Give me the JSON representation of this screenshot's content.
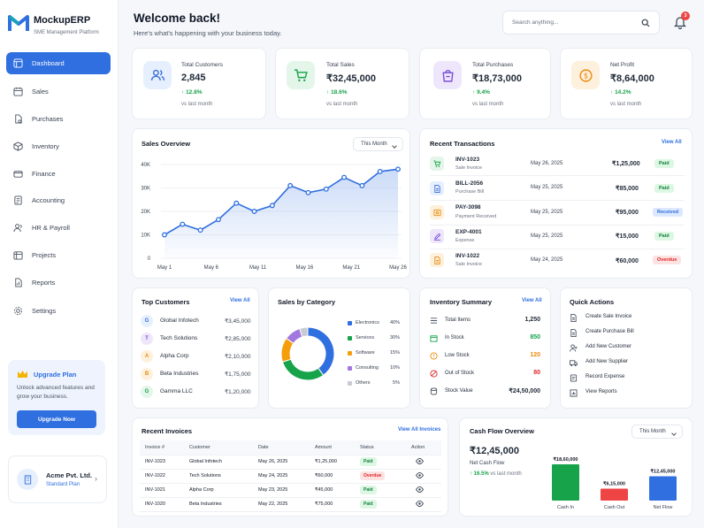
{
  "brand": {
    "name": "MockupERP",
    "subtitle": "SME Management Platform"
  },
  "nav": [
    {
      "label": "Dashboard",
      "icon": "dashboard-icon"
    },
    {
      "label": "Sales",
      "icon": "sales-icon"
    },
    {
      "label": "Purchases",
      "icon": "purchases-icon"
    },
    {
      "label": "Inventory",
      "icon": "inventory-icon"
    },
    {
      "label": "Finance",
      "icon": "finance-icon"
    },
    {
      "label": "Accounting",
      "icon": "accounting-icon"
    },
    {
      "label": "HR & Payroll",
      "icon": "hr-icon"
    },
    {
      "label": "Projects",
      "icon": "projects-icon"
    },
    {
      "label": "Reports",
      "icon": "reports-icon"
    },
    {
      "label": "Settings",
      "icon": "settings-icon"
    }
  ],
  "upgrade": {
    "title": "Upgrade Plan",
    "text": "Unlock advanced features and grow your business.",
    "button": "Upgrade Now"
  },
  "company": {
    "name": "Acme Pvt. Ltd.",
    "plan": "Standard Plan"
  },
  "header": {
    "title": "Welcome back!",
    "subtitle": "Here's what's happening with your business today.",
    "search_placeholder": "Search anything...",
    "notifications": "3"
  },
  "stats": [
    {
      "label": "Total Customers",
      "value": "2,845",
      "change": "12.8%",
      "note": "vs last month",
      "color": "#3b6fd8",
      "bg": "#e6effd"
    },
    {
      "label": "Total Sales",
      "value": "₹32,45,000",
      "change": "18.6%",
      "note": "vs last month",
      "color": "#16a34a",
      "bg": "#e3f6e9"
    },
    {
      "label": "Total Purchases",
      "value": "₹18,73,000",
      "change": "9.4%",
      "note": "vs last month",
      "color": "#7c4dd6",
      "bg": "#eee7fb"
    },
    {
      "label": "Net Profit",
      "value": "₹8,64,000",
      "change": "14.2%",
      "note": "vs last month",
      "color": "#ea8a0c",
      "bg": "#fdf0dc"
    }
  ],
  "sales_overview": {
    "title": "Sales Overview",
    "period": "This Month"
  },
  "chart_data": {
    "type": "area",
    "x": [
      "May 1",
      "May 3",
      "May 5",
      "May 7",
      "May 9",
      "May 11",
      "May 13",
      "May 15",
      "May 17",
      "May 19",
      "May 21",
      "May 23",
      "May 25",
      "May 27"
    ],
    "x_ticks": [
      "May 1",
      "May 6",
      "May 11",
      "May 16",
      "May 21",
      "May 26"
    ],
    "y_ticks": [
      "0",
      "10K",
      "20K",
      "30K",
      "40K"
    ],
    "values": [
      10000,
      14500,
      12000,
      16500,
      23500,
      20000,
      22500,
      31000,
      28000,
      29500,
      34500,
      31000,
      37000,
      38000
    ],
    "ylim": [
      0,
      40000
    ],
    "color": "#2f6fe0"
  },
  "transactions": {
    "title": "Recent Transactions",
    "link": "View All",
    "rows": [
      {
        "id": "INV-1023",
        "type": "Sale Invoice",
        "date": "May 26, 2025",
        "amount": "₹1,25,000",
        "status": "Paid",
        "kind": "green"
      },
      {
        "id": "BILL-2056",
        "type": "Purchase Bill",
        "date": "May 25, 2025",
        "amount": "₹85,000",
        "status": "Paid",
        "kind": "green"
      },
      {
        "id": "PAY-3098",
        "type": "Payment Received",
        "date": "May 25, 2025",
        "amount": "₹95,000",
        "status": "Received",
        "kind": "blue"
      },
      {
        "id": "EXP-4001",
        "type": "Expense",
        "date": "May 25, 2025",
        "amount": "₹15,000",
        "status": "Paid",
        "kind": "green"
      },
      {
        "id": "INV-1022",
        "type": "Sale Invoice",
        "date": "May 24, 2025",
        "amount": "₹60,000",
        "status": "Overdue",
        "kind": "red"
      }
    ]
  },
  "top_customers": {
    "title": "Top Customers",
    "link": "View All",
    "rows": [
      {
        "letter": "G",
        "name": "Global Infotech",
        "amount": "₹3,45,000",
        "color": "#3b6fd8",
        "bg": "#e6effd"
      },
      {
        "letter": "T",
        "name": "Tech Solutions",
        "amount": "₹2,85,000",
        "color": "#7c4dd6",
        "bg": "#eee7fb"
      },
      {
        "letter": "A",
        "name": "Alpha Corp",
        "amount": "₹2,10,000",
        "color": "#ea8a0c",
        "bg": "#fdf0dc"
      },
      {
        "letter": "B",
        "name": "Beta Industries",
        "amount": "₹1,75,000",
        "color": "#ea8a0c",
        "bg": "#fdf0dc"
      },
      {
        "letter": "G",
        "name": "Gamma LLC",
        "amount": "₹1,20,000",
        "color": "#16a34a",
        "bg": "#e3f6e9"
      }
    ]
  },
  "sales_by_category": {
    "title": "Sales by Category",
    "items": [
      {
        "name": "Electronics",
        "pct": "40%",
        "value": 40,
        "color": "#2f6fe0"
      },
      {
        "name": "Services",
        "pct": "30%",
        "value": 30,
        "color": "#16a34a"
      },
      {
        "name": "Software",
        "pct": "15%",
        "value": 15,
        "color": "#f59e0b"
      },
      {
        "name": "Consulting",
        "pct": "10%",
        "value": 10,
        "color": "#a277e0"
      },
      {
        "name": "Others",
        "pct": "5%",
        "value": 5,
        "color": "#c7cbd3"
      }
    ]
  },
  "inventory": {
    "title": "Inventory Summary",
    "link": "View All",
    "rows": [
      {
        "label": "Total Items",
        "value": "1,250",
        "cls": ""
      },
      {
        "label": "In Stock",
        "value": "850",
        "cls": "green"
      },
      {
        "label": "Low Stock",
        "value": "120",
        "cls": "orange"
      },
      {
        "label": "Out of Stock",
        "value": "80",
        "cls": "red"
      },
      {
        "label": "Stock Value",
        "value": "₹24,50,000",
        "cls": ""
      }
    ]
  },
  "quick_actions": {
    "title": "Quick Actions",
    "items": [
      "Create Sale Invoice",
      "Create Purchase Bill",
      "Add New Customer",
      "Add New Supplier",
      "Record Expense",
      "View Reports"
    ]
  },
  "invoices": {
    "title": "Recent Invoices",
    "link": "View All Invoices",
    "headers": [
      "Invoice #",
      "Customer",
      "Date",
      "Amount",
      "Status",
      "Action"
    ],
    "rows": [
      {
        "id": "INV-1023",
        "customer": "Global Infotech",
        "date": "May 26, 2025",
        "amount": "₹1,25,000",
        "status": "Paid",
        "kind": "green"
      },
      {
        "id": "INV-1022",
        "customer": "Tech Solutions",
        "date": "May 24, 2025",
        "amount": "₹60,000",
        "status": "Overdue",
        "kind": "red"
      },
      {
        "id": "INV-1021",
        "customer": "Alpha Corp",
        "date": "May 23, 2025",
        "amount": "₹45,000",
        "status": "Paid",
        "kind": "green"
      },
      {
        "id": "INV-1020",
        "customer": "Beta Industries",
        "date": "May 22, 2025",
        "amount": "₹75,000",
        "status": "Paid",
        "kind": "green"
      }
    ]
  },
  "cash_flow": {
    "title": "Cash Flow Overview",
    "period": "This Month",
    "value": "₹12,45,000",
    "label": "Net Cash Flow",
    "change": "16.5%",
    "note": "vs last month",
    "bars": [
      {
        "name": "Cash In",
        "label": "₹18,60,000",
        "value": 1860000,
        "color": "#16a34a"
      },
      {
        "name": "Cash Out",
        "label": "₹6,15,000",
        "value": 615000,
        "color": "#ef4444"
      },
      {
        "name": "Net Flow",
        "label": "₹12,45,000",
        "value": 1245000,
        "color": "#2f6fe0"
      }
    ]
  }
}
